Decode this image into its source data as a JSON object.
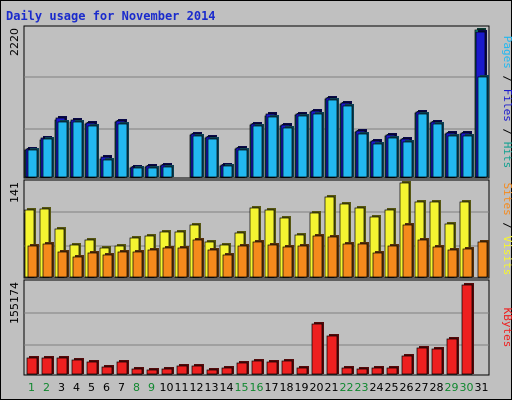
{
  "chart_data": {
    "type": "bar",
    "title": "Daily usage for November 2014",
    "colors": {
      "pages": "#22b8f0",
      "files": "#1a1acc",
      "hits": "#11a090",
      "visits": "#f5f531",
      "sites": "#f58a1c",
      "kbytes": "#ee2020",
      "weekend_label": "#118830",
      "panel_bg": "#c0c0c0",
      "grid": "#808080"
    },
    "days": [
      "1",
      "2",
      "3",
      "4",
      "5",
      "6",
      "7",
      "8",
      "9",
      "10",
      "11",
      "12",
      "13",
      "14",
      "15",
      "16",
      "17",
      "18",
      "19",
      "20",
      "21",
      "22",
      "23",
      "24",
      "25",
      "26",
      "27",
      "28",
      "29",
      "30",
      "31"
    ],
    "weekend_days": [
      "1",
      "2",
      "8",
      "9",
      "15",
      "16",
      "22",
      "23",
      "29",
      "30"
    ],
    "panels": [
      {
        "name": "requests",
        "ymax_label": "2220",
        "ylim": [
          0,
          2220
        ],
        "legend": [
          "Pages",
          "Files",
          "Hits"
        ],
        "series": [
          {
            "name": "Hits",
            "values": [
              400,
              560,
              850,
              830,
              790,
              270,
              820,
              140,
              145,
              160,
              0,
              630,
              590,
              170,
              420,
              780,
              920,
              760,
              930,
              970,
              1170,
              1090,
              670,
              520,
              610,
              550,
              960,
              810,
              640,
              640,
              2200
            ]
          },
          {
            "name": "Files",
            "values": [
              425,
              590,
              880,
              860,
              810,
              300,
              840,
              150,
              160,
              175,
              0,
              650,
              605,
              185,
              435,
              800,
              940,
              780,
              950,
              990,
              1190,
              1110,
              690,
              540,
              630,
              570,
              980,
              830,
              660,
              660,
              2180
            ]
          },
          {
            "name": "Pages",
            "values": [
              410,
              570,
              830,
              820,
              770,
              250,
              800,
              130,
              135,
              150,
              0,
              620,
              570,
              160,
              400,
              760,
              900,
              740,
              910,
              950,
              1150,
              1070,
              650,
              500,
              590,
              530,
              940,
              790,
              620,
              620,
              1500
            ]
          }
        ]
      },
      {
        "name": "visits",
        "ymax_label": "141",
        "ylim": [
          0,
          141
        ],
        "legend": [
          "Sites",
          "Visits"
        ],
        "series": [
          {
            "name": "Visits",
            "values": [
              100,
              102,
              72,
              48,
              56,
              44,
              46,
              58,
              62,
              68,
              68,
              78,
              52,
              48,
              66,
              103,
              100,
              88,
              63,
              96,
              120,
              110,
              104,
              90,
              100,
              141,
              112,
              112,
              80,
              112,
              0
            ]
          },
          {
            "name": "Sites",
            "values": [
              47,
              50,
              37,
              30,
              36,
              33,
              38,
              38,
              40,
              43,
              43,
              55,
              41,
              33,
              46,
              53,
              48,
              45,
              46,
              62,
              60,
              49,
              49,
              36,
              46,
              78,
              55,
              45,
              40,
              42,
              52
            ]
          }
        ]
      },
      {
        "name": "traffic",
        "ymax_label": "155174",
        "ylim": [
          0,
          155174
        ],
        "legend": [
          "KBytes"
        ],
        "series": [
          {
            "name": "KBytes",
            "values": [
              28000,
              28000,
              28000,
              24000,
              20000,
              12000,
              21000,
              8000,
              7000,
              8000,
              14000,
              14000,
              7000,
              11000,
              19000,
              22000,
              21000,
              22000,
              11000,
              85000,
              65000,
              11000,
              9000,
              10000,
              10000,
              30000,
              45000,
              42000,
              60000,
              151000,
              0
            ]
          }
        ]
      }
    ]
  }
}
